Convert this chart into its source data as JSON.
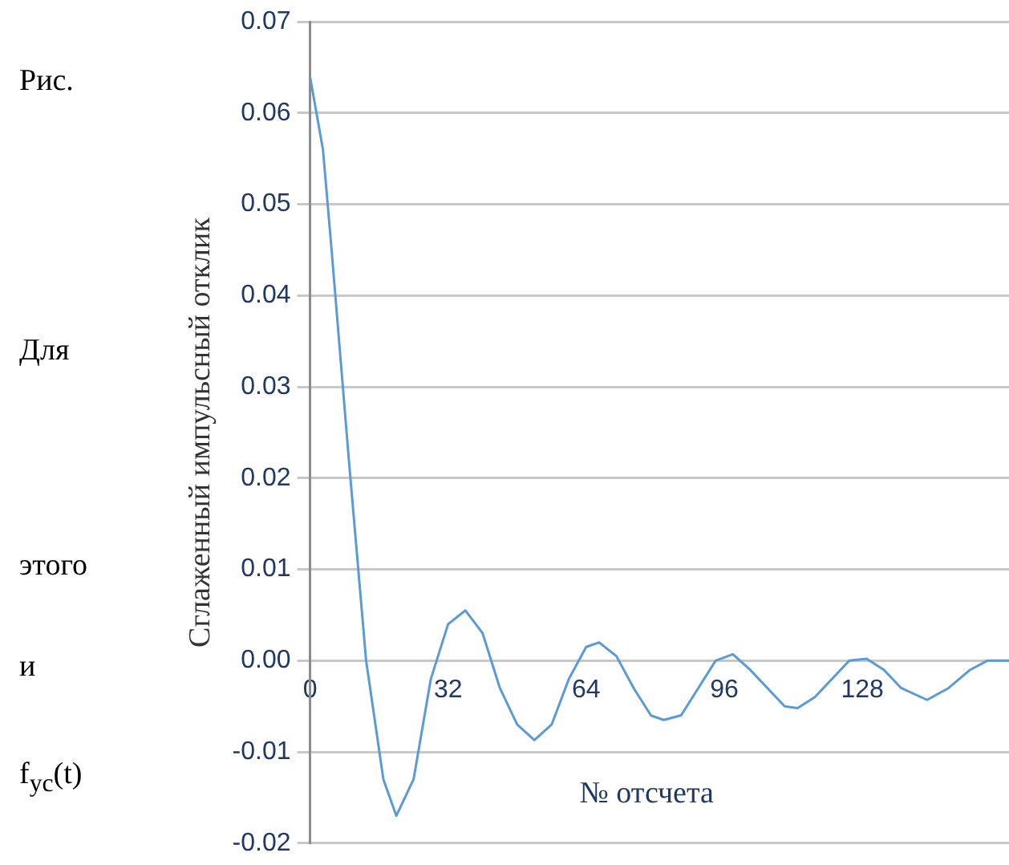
{
  "chart_data": {
    "type": "line",
    "ylabel": "Сглаженный импульсный отклик",
    "xlabel": "№ отсчета",
    "annotations": [
      "Рис.",
      "Для",
      "этого",
      "и",
      "f$_{ус}$(t)"
    ],
    "x": [
      0,
      3,
      5,
      9,
      13,
      17,
      20,
      24,
      28,
      32,
      36,
      40,
      44,
      48,
      52,
      56,
      60,
      64,
      67,
      71,
      75,
      79,
      82,
      86,
      90,
      94,
      98,
      102,
      106,
      110,
      113,
      117,
      121,
      125,
      129,
      133,
      137,
      143,
      148,
      153,
      157,
      162
    ],
    "series": [
      {
        "color": "#5b9bd5",
        "values": [
          0.064,
          0.056,
          0.045,
          0.022,
          0,
          -0.013,
          -0.017,
          -0.013,
          -0.002,
          0.004,
          0.0055,
          0.003,
          -0.003,
          -0.007,
          -0.0087,
          -0.007,
          -0.002,
          0.0015,
          0.002,
          0.0005,
          -0.003,
          -0.006,
          -0.0065,
          -0.006,
          -0.003,
          0,
          0.0007,
          -0.001,
          -0.003,
          -0.005,
          -0.0052,
          -0.004,
          -0.002,
          0,
          0.0002,
          -0.001,
          -0.003,
          -0.0043,
          -0.003,
          -0.001,
          0,
          0
        ]
      }
    ],
    "xlim": [
      0,
      162
    ],
    "xticks": [
      0,
      32,
      64,
      96,
      128
    ],
    "ylim": [
      -0.02,
      0.07
    ],
    "yticks": [
      {
        "value": -0.02,
        "label": "-0.02"
      },
      {
        "value": -0.01,
        "label": "-0.01"
      },
      {
        "value": 0,
        "label": "0.00"
      },
      {
        "value": 0.01,
        "label": "0.01"
      },
      {
        "value": 0.02,
        "label": "0.02"
      },
      {
        "value": 0.03,
        "label": "0.03"
      },
      {
        "value": 0.04,
        "label": "0.04"
      },
      {
        "value": 0.05,
        "label": "0.05"
      },
      {
        "value": 0.06,
        "label": "0.06"
      },
      {
        "value": 0.07,
        "label": "0.07"
      }
    ],
    "grid": "y",
    "legend": false,
    "marker": "none",
    "line_style": "solid"
  }
}
